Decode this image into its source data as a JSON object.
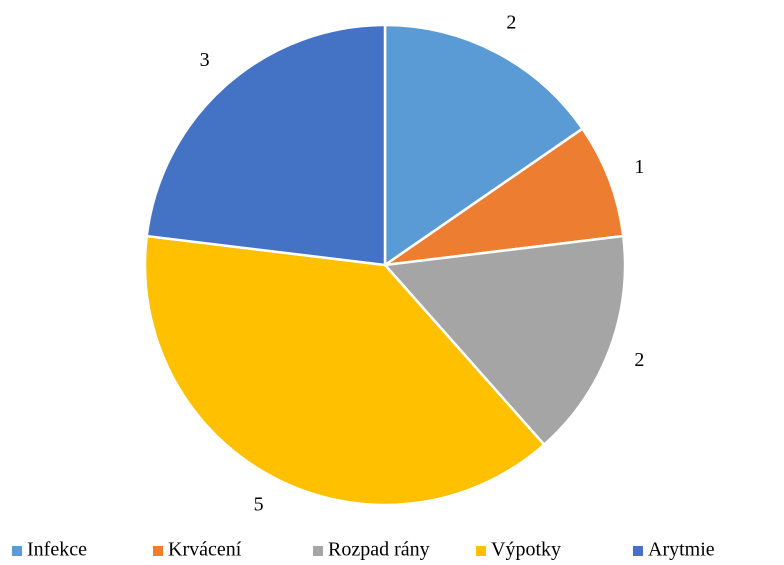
{
  "chart_data": {
    "type": "pie",
    "categories": [
      "Infekce",
      "Krvácení",
      "Rozpad rány",
      "Výpotky",
      "Arytmie"
    ],
    "values": [
      2,
      1,
      2,
      5,
      3
    ],
    "colors": [
      "#5b9bd5",
      "#ed7d31",
      "#a5a5a5",
      "#ffc000",
      "#4472c4"
    ],
    "legend": "bottom"
  }
}
